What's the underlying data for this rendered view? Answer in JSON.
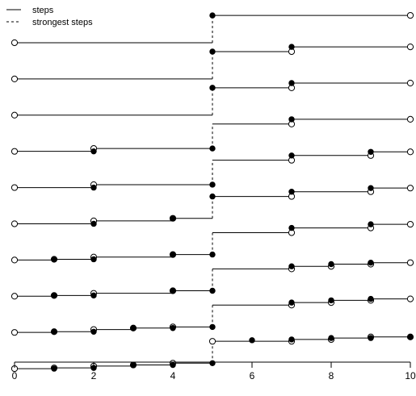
{
  "chart_data": {
    "type": "line",
    "title": "",
    "xlabel": "",
    "ylabel": "",
    "xlim": [
      0,
      10
    ],
    "x_ticks": [
      "0",
      "2",
      "4",
      "6",
      "8",
      "10"
    ],
    "grid": false,
    "legend": {
      "placement": "top-left",
      "entries": [
        {
          "label": "steps",
          "linestyle": "solid"
        },
        {
          "label": "strongest steps",
          "linestyle": "dashed"
        }
      ]
    },
    "strongest_step_x": 5,
    "series": [
      {
        "segments": [
          [
            0,
            5,
            8.6
          ],
          [
            5,
            10,
            9.35
          ]
        ],
        "open": [
          [
            0,
            8.6
          ],
          [
            10,
            9.35
          ]
        ],
        "closed": [
          [
            5,
            9.35
          ]
        ]
      },
      {
        "segments": [
          [
            0,
            5,
            7.6
          ],
          [
            5,
            7,
            8.35
          ],
          [
            7,
            10,
            8.48
          ]
        ],
        "open": [
          [
            0,
            7.6
          ],
          [
            7,
            8.35
          ],
          [
            10,
            8.48
          ]
        ],
        "closed": [
          [
            5,
            8.35
          ],
          [
            7,
            8.48
          ]
        ]
      },
      {
        "segments": [
          [
            0,
            5,
            6.6
          ],
          [
            5,
            7,
            7.35
          ],
          [
            7,
            10,
            7.48
          ]
        ],
        "open": [
          [
            0,
            6.6
          ],
          [
            7,
            7.35
          ],
          [
            10,
            7.48
          ]
        ],
        "closed": [
          [
            5,
            7.35
          ],
          [
            7,
            7.48
          ]
        ]
      },
      {
        "segments": [
          [
            0,
            2,
            5.6
          ],
          [
            2,
            5,
            5.68
          ],
          [
            5,
            7,
            6.35
          ],
          [
            7,
            10,
            6.48
          ]
        ],
        "open": [
          [
            0,
            5.6
          ],
          [
            2,
            5.68
          ],
          [
            7,
            6.35
          ],
          [
            10,
            6.48
          ]
        ],
        "closed": [
          [
            2,
            5.6
          ],
          [
            5,
            5.68
          ],
          [
            7,
            6.48
          ]
        ]
      },
      {
        "segments": [
          [
            0,
            2,
            4.6
          ],
          [
            2,
            5,
            4.68
          ],
          [
            5,
            7,
            5.35
          ],
          [
            7,
            9,
            5.48
          ],
          [
            9,
            10,
            5.58
          ]
        ],
        "open": [
          [
            0,
            4.6
          ],
          [
            2,
            4.68
          ],
          [
            7,
            5.35
          ],
          [
            9,
            5.48
          ],
          [
            10,
            5.58
          ]
        ],
        "closed": [
          [
            2,
            4.6
          ],
          [
            5,
            4.68
          ],
          [
            7,
            5.48
          ],
          [
            9,
            5.58
          ]
        ]
      },
      {
        "segments": [
          [
            0,
            2,
            3.6
          ],
          [
            2,
            4,
            3.68
          ],
          [
            4,
            5,
            3.75
          ],
          [
            5,
            7,
            4.35
          ],
          [
            7,
            9,
            4.48
          ],
          [
            9,
            10,
            4.58
          ]
        ],
        "open": [
          [
            0,
            3.6
          ],
          [
            2,
            3.68
          ],
          [
            4,
            3.75
          ],
          [
            7,
            4.35
          ],
          [
            9,
            4.48
          ],
          [
            10,
            4.58
          ]
        ],
        "closed": [
          [
            2,
            3.6
          ],
          [
            4,
            3.75
          ],
          [
            5,
            4.35
          ],
          [
            7,
            4.48
          ],
          [
            9,
            4.58
          ]
        ]
      },
      {
        "segments": [
          [
            0,
            1,
            2.6
          ],
          [
            1,
            2,
            2.62
          ],
          [
            2,
            4,
            2.68
          ],
          [
            4,
            5,
            2.75
          ],
          [
            5,
            7,
            3.35
          ],
          [
            7,
            9,
            3.48
          ],
          [
            9,
            10,
            3.58
          ]
        ],
        "open": [
          [
            0,
            2.6
          ],
          [
            1,
            2.62
          ],
          [
            2,
            2.68
          ],
          [
            4,
            2.75
          ],
          [
            7,
            3.35
          ],
          [
            9,
            3.48
          ],
          [
            10,
            3.58
          ]
        ],
        "closed": [
          [
            1,
            2.62
          ],
          [
            2,
            2.62
          ],
          [
            4,
            2.75
          ],
          [
            5,
            2.75
          ],
          [
            7,
            3.48
          ],
          [
            9,
            3.58
          ]
        ]
      },
      {
        "segments": [
          [
            0,
            1,
            1.6
          ],
          [
            1,
            2,
            1.62
          ],
          [
            2,
            4,
            1.68
          ],
          [
            4,
            5,
            1.75
          ],
          [
            5,
            7,
            2.35
          ],
          [
            7,
            8,
            2.42
          ],
          [
            8,
            9,
            2.48
          ],
          [
            9,
            10,
            2.52
          ]
        ],
        "open": [
          [
            0,
            1.6
          ],
          [
            1,
            1.62
          ],
          [
            2,
            1.68
          ],
          [
            4,
            1.75
          ],
          [
            7,
            2.35
          ],
          [
            8,
            2.42
          ],
          [
            9,
            2.48
          ],
          [
            10,
            2.52
          ]
        ],
        "closed": [
          [
            1,
            1.62
          ],
          [
            2,
            1.62
          ],
          [
            4,
            1.75
          ],
          [
            5,
            1.75
          ],
          [
            7,
            2.42
          ],
          [
            8,
            2.48
          ],
          [
            9,
            2.52
          ]
        ]
      },
      {
        "segments": [
          [
            0,
            1,
            0.6
          ],
          [
            1,
            2,
            0.62
          ],
          [
            2,
            3,
            0.68
          ],
          [
            3,
            4,
            0.72
          ],
          [
            4,
            5,
            0.75
          ],
          [
            5,
            7,
            1.35
          ],
          [
            7,
            8,
            1.42
          ],
          [
            8,
            9,
            1.48
          ],
          [
            9,
            10,
            1.52
          ]
        ],
        "open": [
          [
            0,
            0.6
          ],
          [
            1,
            0.62
          ],
          [
            2,
            0.68
          ],
          [
            3,
            0.72
          ],
          [
            4,
            0.75
          ],
          [
            7,
            1.35
          ],
          [
            8,
            1.42
          ],
          [
            9,
            1.48
          ],
          [
            10,
            1.52
          ]
        ],
        "closed": [
          [
            1,
            0.62
          ],
          [
            2,
            0.62
          ],
          [
            3,
            0.72
          ],
          [
            4,
            0.72
          ],
          [
            5,
            0.75
          ],
          [
            7,
            1.42
          ],
          [
            8,
            1.48
          ],
          [
            9,
            1.52
          ]
        ]
      },
      {
        "segments": [
          [
            0,
            1,
            -0.4
          ],
          [
            1,
            2,
            -0.38
          ],
          [
            2,
            3,
            -0.33
          ],
          [
            3,
            4,
            -0.3
          ],
          [
            4,
            5,
            -0.25
          ],
          [
            5,
            7,
            0.35
          ],
          [
            7,
            8,
            0.4
          ],
          [
            8,
            9,
            0.44
          ],
          [
            9,
            10,
            0.47
          ]
        ],
        "open": [
          [
            0,
            -0.4
          ],
          [
            1,
            -0.38
          ],
          [
            2,
            -0.33
          ],
          [
            3,
            -0.3
          ],
          [
            4,
            -0.25
          ],
          [
            5,
            0.35
          ],
          [
            7,
            0.35
          ],
          [
            8,
            0.4
          ],
          [
            9,
            0.47
          ],
          [
            10,
            0.47
          ]
        ],
        "closed": [
          [
            1,
            -0.4
          ],
          [
            2,
            -0.38
          ],
          [
            3,
            -0.3
          ],
          [
            4,
            -0.3
          ],
          [
            5,
            -0.25
          ],
          [
            6,
            0.38
          ],
          [
            7,
            0.4
          ],
          [
            8,
            0.44
          ],
          [
            9,
            0.44
          ],
          [
            10,
            0.47
          ]
        ]
      }
    ]
  }
}
